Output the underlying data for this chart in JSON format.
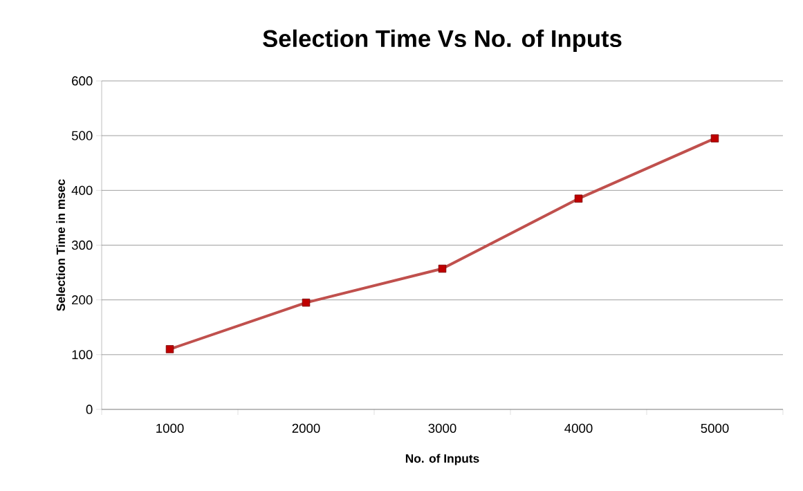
{
  "chart_data": {
    "type": "line",
    "title": "Selection Time Vs No. of Inputs",
    "xlabel": "No. of Inputs",
    "ylabel": "Selection Time in msec",
    "categories": [
      "1000",
      "2000",
      "3000",
      "4000",
      "5000"
    ],
    "series": [
      {
        "color": "#c0504d",
        "values": [
          110,
          195,
          257,
          385,
          495
        ]
      }
    ],
    "ylim": [
      0,
      600
    ],
    "yticks": [
      0,
      100,
      200,
      300,
      400,
      500,
      600
    ],
    "grid": "y",
    "marker": "square",
    "line_style": "solid"
  }
}
